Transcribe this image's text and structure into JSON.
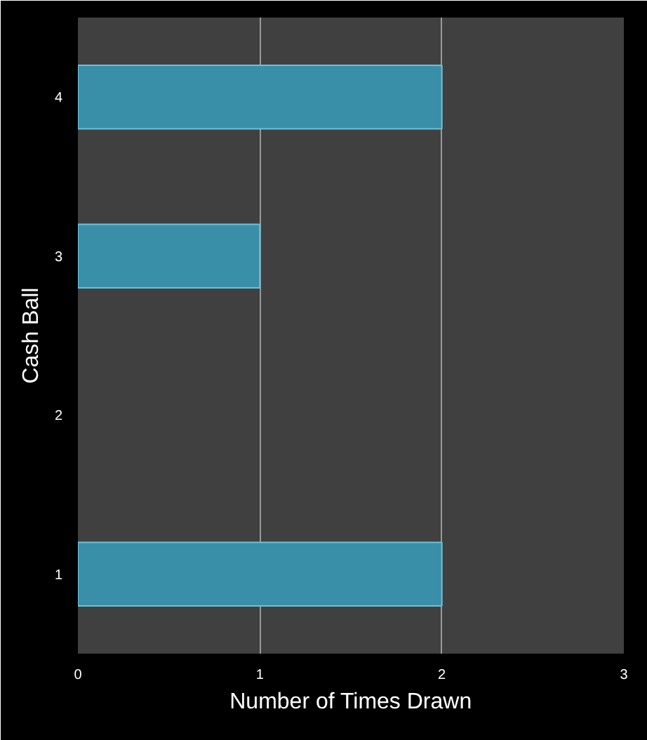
{
  "chart_data": {
    "type": "bar",
    "orientation": "horizontal",
    "xlabel": "Number of Times Drawn",
    "ylabel": "Cash Ball",
    "categories": [
      "4",
      "3",
      "2",
      "1"
    ],
    "values": [
      2,
      1,
      null,
      2
    ],
    "color": "#3a8fa8",
    "xlim": [
      0,
      3
    ],
    "xticks": [
      0,
      1,
      2,
      3
    ],
    "grid": "x"
  }
}
